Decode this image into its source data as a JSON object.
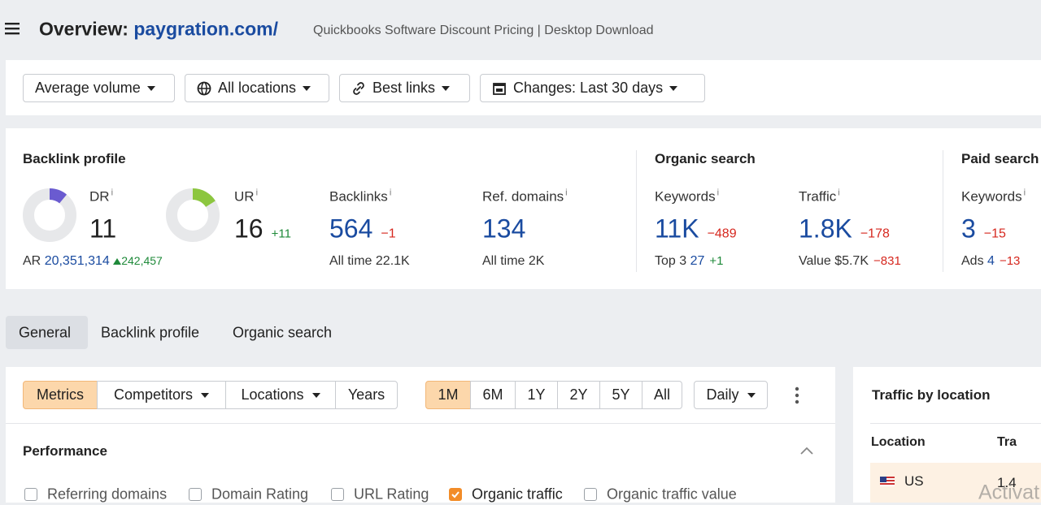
{
  "header": {
    "title": "Overview:",
    "domain": "paygration.com/",
    "page_title": "Quickbooks Software Discount Pricing | Desktop Download"
  },
  "filters": [
    "Average volume",
    "All locations",
    "Best links",
    "Changes: Last 30 days"
  ],
  "info_mark": "i",
  "backlink_profile": {
    "title": "Backlink profile",
    "dr": {
      "label": "DR",
      "value": 11
    },
    "ur": {
      "label": "UR",
      "value": 16,
      "change": "+11"
    },
    "ar": {
      "label": "AR",
      "value": "20,351,314",
      "change": "242,457"
    },
    "backlinks": {
      "label": "Backlinks",
      "value": "564",
      "change": "−1",
      "sub_label": "All time",
      "sub_value": "22.1K"
    },
    "ref_domains": {
      "label": "Ref. domains",
      "value": "134",
      "sub_label": "All time",
      "sub_value": "2K"
    }
  },
  "organic_search": {
    "title": "Organic search",
    "keywords": {
      "label": "Keywords",
      "value": "11K",
      "change": "−489",
      "sub_label": "Top 3",
      "sub_value": "27",
      "sub_change": "+1"
    },
    "traffic": {
      "label": "Traffic",
      "value": "1.8K",
      "change": "−178",
      "sub_label": "Value",
      "sub_value": "$5.7K",
      "sub_change": "−831"
    }
  },
  "paid_search": {
    "title": "Paid search",
    "keywords": {
      "label": "Keywords",
      "value": "3",
      "change": "−15",
      "sub_label": "Ads",
      "sub_value": "4",
      "sub_change": "−13"
    }
  },
  "tabs": [
    "General",
    "Backlink profile",
    "Organic search"
  ],
  "toolbar": {
    "views": [
      "Metrics",
      "Competitors",
      "Locations",
      "Years"
    ],
    "periods": [
      "1M",
      "6M",
      "1Y",
      "2Y",
      "5Y",
      "All"
    ],
    "interval": "Daily"
  },
  "performance": {
    "title": "Performance",
    "options": [
      {
        "label": "Referring domains",
        "checked": false
      },
      {
        "label": "Domain Rating",
        "checked": false
      },
      {
        "label": "URL Rating",
        "checked": false
      },
      {
        "label": "Organic traffic",
        "checked": true
      },
      {
        "label": "Organic traffic value",
        "checked": false
      }
    ]
  },
  "traffic_by_location": {
    "title": "Traffic by location",
    "columns": [
      "Location",
      "Tra"
    ],
    "rows": [
      [
        "US",
        "1.4"
      ]
    ]
  },
  "watermark": "Activat"
}
